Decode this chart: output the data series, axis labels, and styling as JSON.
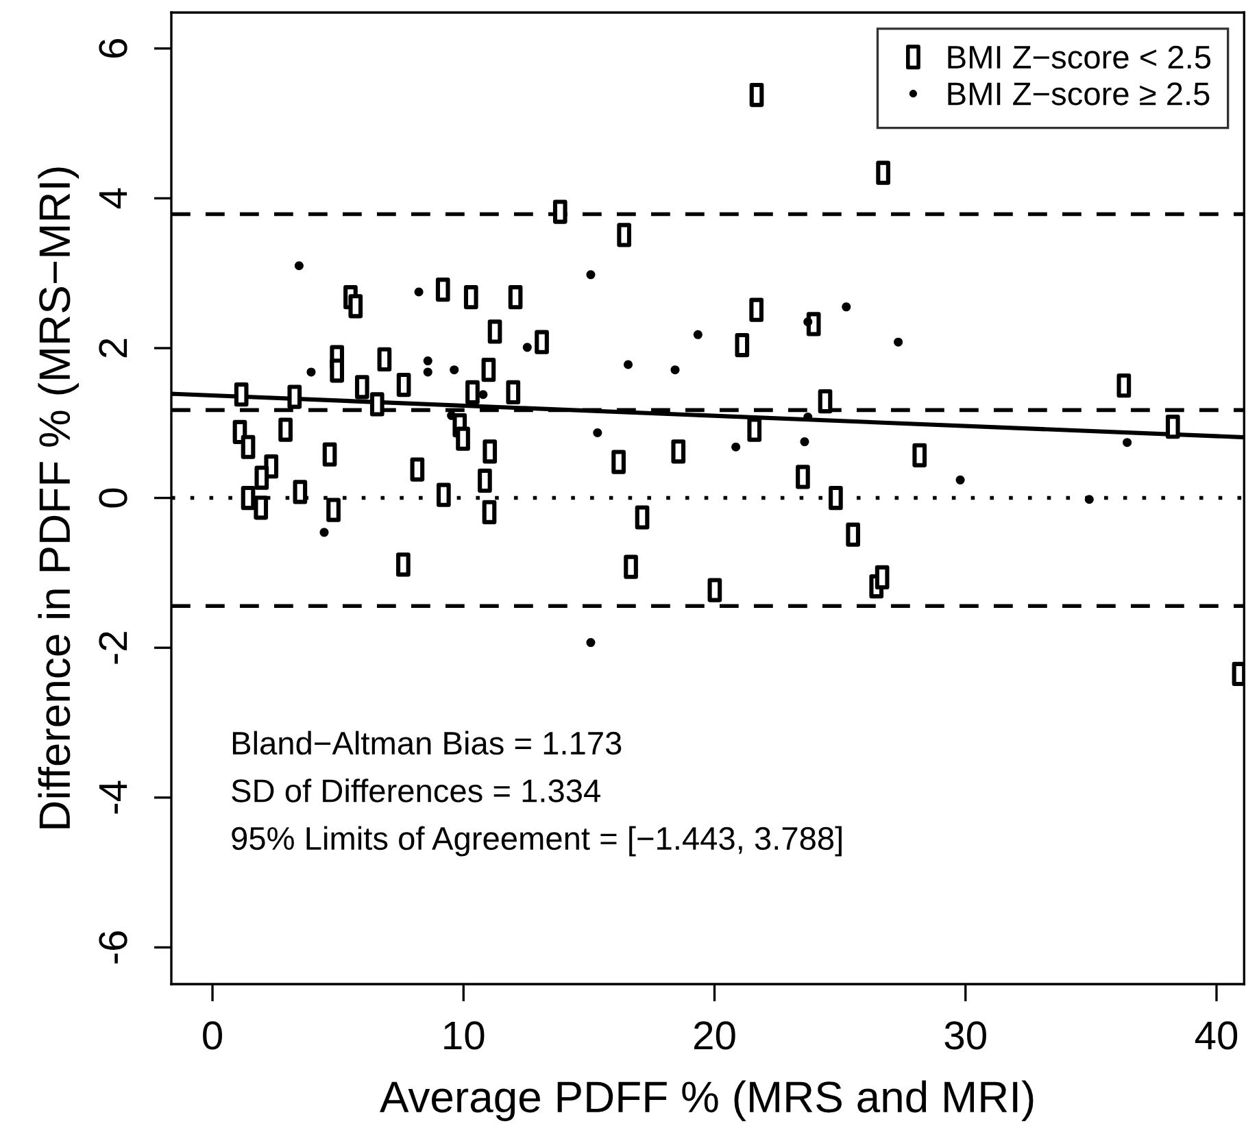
{
  "chart_data": {
    "type": "scatter",
    "xlabel": "Average PDFF % (MRS and MRI)",
    "ylabel": "Difference in PDFF % (MRS−MRI)",
    "xlim": [
      -1.64,
      41.1
    ],
    "ylim": [
      -6.49,
      6.48
    ],
    "xticks": [
      0,
      10,
      20,
      30,
      40
    ],
    "yticks": [
      -6,
      -4,
      -2,
      0,
      2,
      4,
      6
    ],
    "grid": false,
    "legend": "top right",
    "series": [
      {
        "name": "BMI Z−score < 2.5",
        "color": "#000000",
        "marker": "square",
        "x": [
          5.5,
          5.7,
          9.18,
          10.3,
          12.07,
          11.25,
          13.12,
          4.96,
          4.96,
          6.85,
          11.0,
          5.96,
          7.62,
          10.36,
          11.98,
          1.15,
          3.27,
          6.56,
          9.85,
          9.98,
          1.09,
          1.42,
          2.91,
          11.05,
          4.67,
          2.34,
          1.96,
          8.16,
          10.85,
          1.42,
          3.49,
          9.21,
          1.93,
          4.82,
          11.03,
          7.6,
          21.68,
          26.72,
          13.85,
          16.4,
          21.67,
          23.95,
          21.1,
          24.41,
          21.59,
          16.18,
          18.56,
          28.17,
          23.52,
          24.83,
          17.12,
          25.52,
          16.67,
          20.01,
          26.45,
          26.68,
          36.31,
          38.26,
          40.9
        ],
        "values": [
          2.68,
          2.56,
          2.78,
          2.68,
          2.68,
          2.22,
          2.08,
          1.88,
          1.7,
          1.85,
          1.71,
          1.48,
          1.51,
          1.41,
          1.41,
          1.38,
          1.35,
          1.25,
          0.97,
          0.79,
          0.88,
          0.68,
          0.91,
          0.62,
          0.58,
          0.42,
          0.27,
          0.38,
          0.23,
          0.0,
          0.08,
          0.04,
          -0.13,
          -0.16,
          -0.19,
          -0.89,
          5.38,
          4.34,
          3.82,
          3.51,
          2.51,
          2.32,
          2.04,
          1.29,
          0.91,
          0.48,
          0.62,
          0.57,
          0.28,
          0.0,
          -0.26,
          -0.49,
          -0.92,
          -1.23,
          -1.18,
          -1.06,
          1.5,
          0.95,
          -2.35
        ]
      },
      {
        "name": "BMI Z−score ≥ 2.5",
        "color": "#000000",
        "marker": "circle",
        "x": [
          3.45,
          8.22,
          12.54,
          3.93,
          8.58,
          8.58,
          9.63,
          10.78,
          9.52,
          4.45,
          15.07,
          25.25,
          23.72,
          19.34,
          27.32,
          16.56,
          18.43,
          23.72,
          15.34,
          20.85,
          23.59,
          15.07,
          36.44,
          29.79,
          34.93
        ],
        "values": [
          3.1,
          2.75,
          2.01,
          1.68,
          1.83,
          1.68,
          1.71,
          1.38,
          1.1,
          -0.46,
          2.98,
          2.55,
          2.35,
          2.18,
          2.08,
          1.78,
          1.71,
          1.08,
          0.87,
          0.68,
          0.75,
          -1.93,
          0.74,
          0.24,
          -0.02
        ]
      },
      {
        "type": "line",
        "color": "#000000",
        "x": [
          -1.64,
          41.1
        ],
        "values": [
          1.39,
          0.81
        ],
        "line_style": "solid"
      }
    ],
    "ref_lines": [
      {
        "axis": "y",
        "value": 3.788,
        "line_style": "dashed",
        "color": "#000000"
      },
      {
        "axis": "y",
        "value": 1.173,
        "line_style": "dashed",
        "color": "#000000"
      },
      {
        "axis": "y",
        "value": 0,
        "line_style": "dotted",
        "color": "#000000"
      },
      {
        "axis": "y",
        "value": -1.443,
        "line_style": "dashed",
        "color": "#000000"
      }
    ],
    "annotations": [
      "Bland−Altman Bias = 1.173",
      "SD of Differences = 1.334",
      "95% Limits of Agreement = [−1.443, 3.788]"
    ]
  }
}
